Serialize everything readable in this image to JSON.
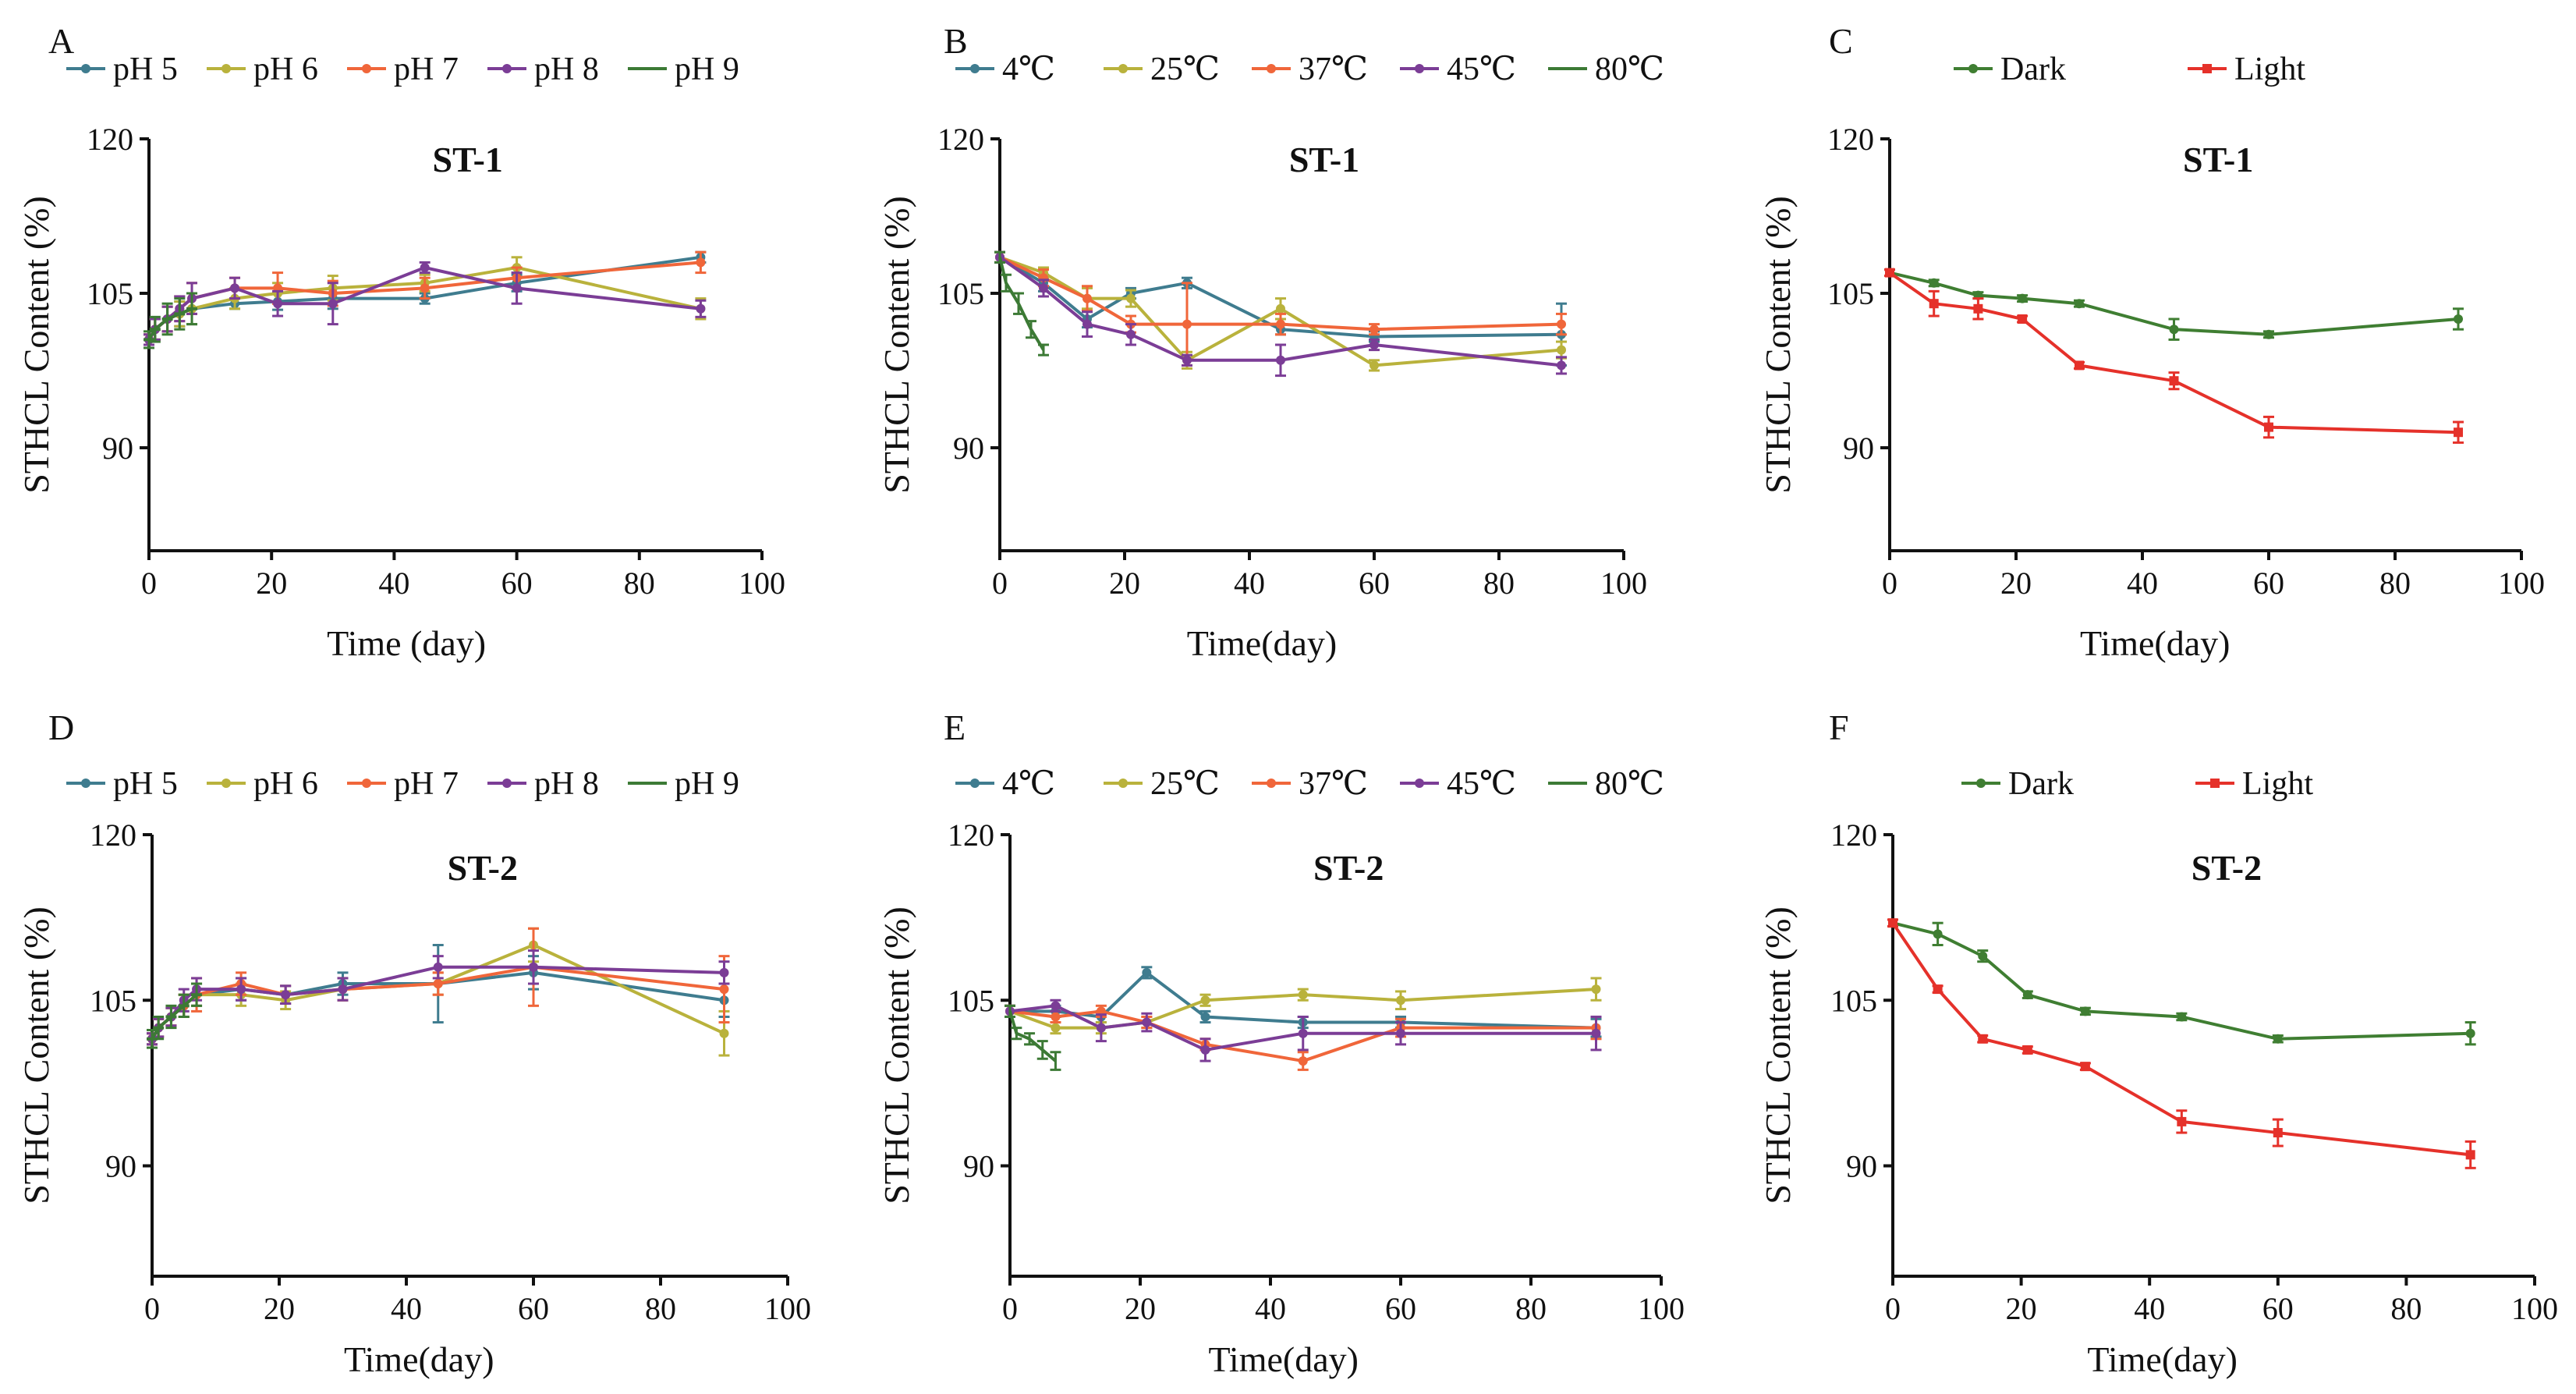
{
  "figure": {
    "colors": {
      "ph5": "#3f7c8f",
      "ph6": "#b9b23c",
      "ph7": "#f0663a",
      "ph8": "#7b3d96",
      "ph9": "#3c7a35",
      "t4": "#3f7c8f",
      "t25": "#b9b23c",
      "t37": "#f0663a",
      "t45": "#7b3d96",
      "t80": "#3c7a35",
      "dark": "#3f7e32",
      "light": "#e5312a"
    }
  },
  "chart_data": [
    {
      "panel": "A",
      "type": "line",
      "title": "ST-1",
      "xlabel": "Time (day)",
      "ylabel": "STHCL Content (%)",
      "xlim": [
        0,
        100
      ],
      "ylim": [
        80,
        120
      ],
      "xticks": [
        "0",
        "20",
        "40",
        "60",
        "80",
        "100"
      ],
      "yticks": [
        "90",
        "105",
        "120"
      ],
      "series": [
        {
          "name": "pH 5",
          "color": "ph5",
          "marker": "dot",
          "x": [
            0,
            1,
            3,
            5,
            7,
            14,
            21,
            30,
            45,
            60,
            90
          ],
          "y": [
            100.5,
            101.5,
            102.5,
            103,
            103.5,
            104,
            104.2,
            104.5,
            104.5,
            106,
            108.5
          ],
          "err": [
            0.5,
            1,
            1.2,
            1.2,
            1.5,
            0.5,
            0.8,
            1,
            0.5,
            0.8,
            0.5
          ]
        },
        {
          "name": "pH 6",
          "color": "ph6",
          "marker": "dot",
          "x": [
            0,
            1,
            3,
            5,
            7,
            14,
            21,
            30,
            45,
            60,
            90
          ],
          "y": [
            100.5,
            101.5,
            102.5,
            103,
            103.5,
            104.5,
            105,
            105.5,
            106,
            107.5,
            103.5
          ],
          "err": [
            0.5,
            1,
            1.2,
            1.2,
            1.5,
            1,
            1,
            1.2,
            0.8,
            1,
            1
          ]
        },
        {
          "name": "pH 7",
          "color": "ph7",
          "marker": "dot",
          "x": [
            0,
            1,
            3,
            5,
            7,
            14,
            21,
            30,
            45,
            60,
            90
          ],
          "y": [
            100.5,
            101.5,
            102.5,
            103.5,
            104.5,
            105.5,
            105.5,
            105,
            105.5,
            106.5,
            108
          ],
          "err": [
            0.5,
            1,
            1.2,
            1.2,
            1.5,
            1,
            1.5,
            1.2,
            1,
            1,
            1
          ]
        },
        {
          "name": "pH 8",
          "color": "ph8",
          "marker": "dot",
          "x": [
            0,
            1,
            3,
            5,
            7,
            14,
            21,
            30,
            45,
            60,
            90
          ],
          "y": [
            100.5,
            101.5,
            102.5,
            103.5,
            104.5,
            105.5,
            104,
            104,
            107.5,
            105.5,
            103.5
          ],
          "err": [
            0.5,
            1,
            1.2,
            1.2,
            1.5,
            1,
            1.2,
            2,
            0.5,
            1.5,
            0.8
          ]
        },
        {
          "name": "pH 9",
          "color": "ph9",
          "marker": "dash",
          "x": [
            0,
            1,
            3,
            5,
            7
          ],
          "y": [
            100.5,
            101.5,
            102.5,
            103,
            103.5
          ],
          "err": [
            0.8,
            1.2,
            1.5,
            1.5,
            1.5
          ]
        }
      ]
    },
    {
      "panel": "B",
      "type": "line",
      "title": "ST-1",
      "xlabel": "Time(day)",
      "ylabel": "STHCL Content (%)",
      "xlim": [
        0,
        100
      ],
      "ylim": [
        80,
        120
      ],
      "xticks": [
        "0",
        "20",
        "40",
        "60",
        "80",
        "100"
      ],
      "yticks": [
        "90",
        "105",
        "120"
      ],
      "series": [
        {
          "name": "4℃",
          "color": "t4",
          "marker": "dot",
          "x": [
            0,
            7,
            14,
            21,
            30,
            45,
            60,
            90
          ],
          "y": [
            108.5,
            106,
            102.5,
            105,
            106,
            101.5,
            100.8,
            101
          ],
          "err": [
            0.5,
            0.8,
            0.8,
            0.5,
            0.5,
            0.5,
            0.5,
            3
          ]
        },
        {
          "name": "25℃",
          "color": "t25",
          "marker": "dot",
          "x": [
            0,
            7,
            14,
            21,
            30,
            45,
            60,
            90
          ],
          "y": [
            108.5,
            107,
            104.5,
            104.5,
            98.5,
            103.5,
            98,
            99.5
          ],
          "err": [
            0.5,
            0.5,
            1,
            0.8,
            0.8,
            1,
            0.5,
            0.8
          ]
        },
        {
          "name": "37℃",
          "color": "t37",
          "marker": "dot",
          "x": [
            0,
            7,
            14,
            21,
            30,
            45,
            60,
            90
          ],
          "y": [
            108.5,
            106.5,
            104.5,
            102,
            102,
            102,
            101.5,
            102
          ],
          "err": [
            0.5,
            0.8,
            1.2,
            0.8,
            4,
            1,
            0.5,
            1
          ]
        },
        {
          "name": "45℃",
          "color": "t45",
          "marker": "dot",
          "x": [
            0,
            7,
            14,
            21,
            30,
            45,
            60,
            90
          ],
          "y": [
            108.5,
            105.5,
            102,
            101,
            98.5,
            98.5,
            100,
            98
          ],
          "err": [
            0.5,
            0.8,
            1.2,
            1,
            0.5,
            1.5,
            0.5,
            0.8
          ]
        },
        {
          "name": "80℃",
          "color": "t80",
          "marker": "line",
          "x": [
            0,
            1,
            3,
            5,
            7
          ],
          "y": [
            108.5,
            106,
            104,
            101.5,
            99.5
          ],
          "err": [
            0.5,
            0.8,
            1,
            0.8,
            0.5
          ]
        }
      ]
    },
    {
      "panel": "C",
      "type": "line",
      "title": "ST-1",
      "xlabel": "Time(day)",
      "ylabel": "STHCL Content (%)",
      "xlim": [
        0,
        100
      ],
      "ylim": [
        80,
        120
      ],
      "xticks": [
        "0",
        "20",
        "40",
        "60",
        "80",
        "100"
      ],
      "yticks": [
        "90",
        "105",
        "120"
      ],
      "series": [
        {
          "name": "Dark",
          "color": "dark",
          "marker": "dot",
          "x": [
            0,
            7,
            14,
            21,
            30,
            45,
            60,
            90
          ],
          "y": [
            107,
            106,
            104.8,
            104.5,
            104,
            101.5,
            101,
            102.5
          ],
          "err": [
            0.3,
            0.3,
            0.3,
            0.3,
            0.3,
            1,
            0.3,
            1
          ]
        },
        {
          "name": "Light",
          "color": "light",
          "marker": "square",
          "x": [
            0,
            7,
            14,
            21,
            30,
            45,
            60,
            90
          ],
          "y": [
            107,
            104,
            103.5,
            102.5,
            98,
            96.5,
            92,
            91.5
          ],
          "err": [
            0.3,
            1.2,
            1,
            0.3,
            0.3,
            0.8,
            1,
            1
          ]
        }
      ]
    },
    {
      "panel": "D",
      "type": "line",
      "title": "ST-2",
      "xlabel": "Time(day)",
      "ylabel": "STHCL Content (%)",
      "xlim": [
        0,
        100
      ],
      "ylim": [
        80,
        120
      ],
      "xticks": [
        "0",
        "20",
        "40",
        "60",
        "80",
        "100"
      ],
      "yticks": [
        "90",
        "105",
        "120"
      ],
      "series": [
        {
          "name": "pH 5",
          "color": "ph5",
          "marker": "dot",
          "x": [
            0,
            1,
            3,
            5,
            7,
            14,
            21,
            30,
            45,
            60,
            90
          ],
          "y": [
            101.5,
            102.5,
            103.5,
            104.5,
            105.5,
            106,
            105.5,
            106.5,
            106.5,
            107.5,
            105
          ],
          "err": [
            0.5,
            0.8,
            0.8,
            1,
            1,
            1,
            0.8,
            1,
            3.5,
            1.5,
            1.5
          ]
        },
        {
          "name": "pH 6",
          "color": "ph6",
          "marker": "dot",
          "x": [
            0,
            1,
            3,
            5,
            7,
            14,
            21,
            30,
            45,
            60,
            90
          ],
          "y": [
            101.5,
            102.5,
            103.5,
            104.5,
            105.5,
            105.5,
            105,
            106,
            106.5,
            110,
            102
          ],
          "err": [
            0.5,
            0.8,
            0.8,
            1,
            1,
            1,
            0.8,
            1,
            1,
            1.5,
            2
          ]
        },
        {
          "name": "pH 7",
          "color": "ph7",
          "marker": "dot",
          "x": [
            0,
            1,
            3,
            5,
            7,
            14,
            21,
            30,
            45,
            60,
            90
          ],
          "y": [
            101.5,
            102.5,
            103.5,
            104.5,
            105.5,
            106.5,
            105.5,
            106,
            106.5,
            108,
            106
          ],
          "err": [
            0.5,
            0.8,
            0.8,
            1,
            1.5,
            1,
            0.8,
            1,
            1,
            3.5,
            3
          ]
        },
        {
          "name": "pH 8",
          "color": "ph8",
          "marker": "dot",
          "x": [
            0,
            1,
            3,
            5,
            7,
            14,
            21,
            30,
            45,
            60,
            90
          ],
          "y": [
            101.5,
            102.5,
            103.5,
            105,
            106,
            106,
            105.5,
            106,
            108,
            108,
            107.5
          ],
          "err": [
            0.5,
            0.8,
            0.8,
            1,
            1,
            1,
            0.8,
            1,
            1,
            1.5,
            1
          ]
        },
        {
          "name": "pH 9",
          "color": "ph9",
          "marker": "dash",
          "x": [
            0,
            1,
            3,
            5,
            7
          ],
          "y": [
            101.5,
            102.5,
            103.5,
            104.5,
            105.5
          ],
          "err": [
            0.8,
            1,
            1,
            1,
            1
          ]
        }
      ]
    },
    {
      "panel": "E",
      "type": "line",
      "title": "ST-2",
      "xlabel": "Time(day)",
      "ylabel": "STHCL Content (%)",
      "xlim": [
        0,
        100
      ],
      "ylim": [
        80,
        120
      ],
      "xticks": [
        "0",
        "20",
        "40",
        "60",
        "80",
        "100"
      ],
      "yticks": [
        "90",
        "105",
        "120"
      ],
      "series": [
        {
          "name": "4℃",
          "color": "t4",
          "marker": "dot",
          "x": [
            0,
            7,
            14,
            21,
            30,
            45,
            60,
            90
          ],
          "y": [
            104,
            104,
            103.5,
            107.5,
            103.5,
            103,
            103,
            102.5
          ],
          "err": [
            0.5,
            0.5,
            0.5,
            0.5,
            0.5,
            0.5,
            0.5,
            0.8
          ]
        },
        {
          "name": "25℃",
          "color": "t25",
          "marker": "dot",
          "x": [
            0,
            7,
            14,
            21,
            30,
            45,
            60,
            90
          ],
          "y": [
            104,
            102.5,
            102.5,
            103,
            105,
            105.5,
            105,
            106
          ],
          "err": [
            0.5,
            0.5,
            0.5,
            0.5,
            0.5,
            0.5,
            0.8,
            1
          ]
        },
        {
          "name": "37℃",
          "color": "t37",
          "marker": "dot",
          "x": [
            0,
            7,
            14,
            21,
            30,
            45,
            60,
            90
          ],
          "y": [
            104,
            103.5,
            104,
            103,
            101,
            99.5,
            102.5,
            102.5
          ],
          "err": [
            0.5,
            0.5,
            0.5,
            0.5,
            0.5,
            0.8,
            0.8,
            1
          ]
        },
        {
          "name": "45℃",
          "color": "t45",
          "marker": "dot",
          "x": [
            0,
            7,
            14,
            21,
            30,
            45,
            60,
            90
          ],
          "y": [
            104,
            104.5,
            102.5,
            103,
            100.5,
            102,
            102,
            102
          ],
          "err": [
            0.5,
            0.5,
            1.2,
            0.8,
            1,
            1.5,
            1,
            1.5
          ]
        },
        {
          "name": "80℃",
          "color": "t80",
          "marker": "line",
          "x": [
            0,
            1,
            3,
            5,
            7
          ],
          "y": [
            104,
            102,
            101.5,
            100.5,
            99.5
          ],
          "err": [
            0.5,
            0.5,
            0.5,
            0.8,
            0.8
          ]
        }
      ]
    },
    {
      "panel": "F",
      "type": "line",
      "title": "ST-2",
      "xlabel": "Time(day)",
      "ylabel": "STHCL Content (%)",
      "xlim": [
        0,
        100
      ],
      "ylim": [
        80,
        120
      ],
      "xticks": [
        "0",
        "20",
        "40",
        "60",
        "80",
        "100"
      ],
      "yticks": [
        "90",
        "105",
        "120"
      ],
      "series": [
        {
          "name": "Dark",
          "color": "dark",
          "marker": "dot",
          "x": [
            0,
            7,
            14,
            21,
            30,
            45,
            60,
            90
          ],
          "y": [
            112,
            111,
            109,
            105.5,
            104,
            103.5,
            101.5,
            102
          ],
          "err": [
            0.3,
            1,
            0.5,
            0.3,
            0.3,
            0.3,
            0.3,
            1
          ]
        },
        {
          "name": "Light",
          "color": "light",
          "marker": "square",
          "x": [
            0,
            7,
            14,
            21,
            30,
            45,
            60,
            90
          ],
          "y": [
            112,
            106,
            101.5,
            100.5,
            99,
            94,
            93,
            91
          ],
          "err": [
            0.3,
            0.3,
            0.3,
            0.3,
            0.3,
            1,
            1.2,
            1.2
          ]
        }
      ]
    }
  ]
}
